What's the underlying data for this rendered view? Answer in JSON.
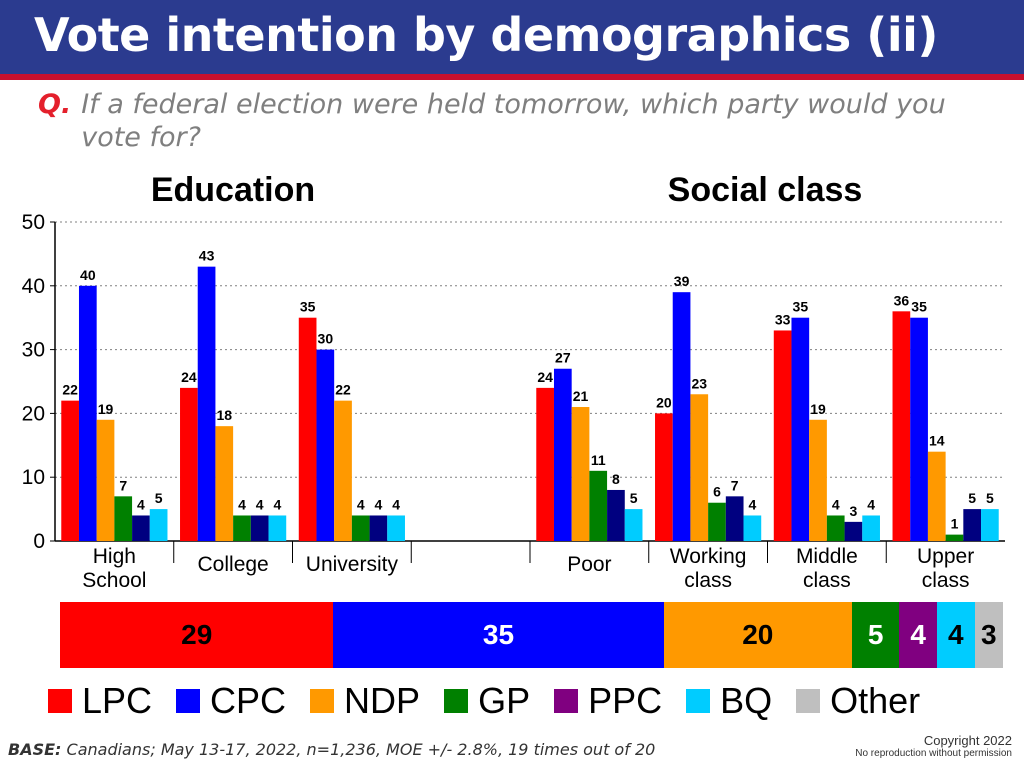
{
  "title": "Vote intention by demographics (ii)",
  "question": {
    "label": "Q.",
    "text": "If a federal election were held tomorrow, which party would you vote for?"
  },
  "colors": {
    "LPC": "#FF0000",
    "CPC": "#0000FF",
    "NDP": "#FF9900",
    "GP": "#008000",
    "PPC": "#800080",
    "BQ": "#00CCFF",
    "Other": "#BFBFBF"
  },
  "chart_data": {
    "type": "bar",
    "panel_titles": [
      "Education",
      "Social class"
    ],
    "ylim": [
      0,
      50
    ],
    "yticks": [
      "0",
      "10",
      "20",
      "30",
      "40",
      "50"
    ],
    "grid": true,
    "categories": [
      "High School",
      "College",
      "University",
      "",
      "Poor",
      "Working class",
      "Middle class",
      "Upper class"
    ],
    "series": [
      {
        "name": "LPC",
        "color": "#FF0000",
        "values": [
          22,
          24,
          35,
          null,
          24,
          20,
          33,
          36
        ]
      },
      {
        "name": "CPC",
        "color": "#0000FF",
        "values": [
          40,
          43,
          30,
          null,
          27,
          39,
          35,
          35
        ]
      },
      {
        "name": "NDP",
        "color": "#FF9900",
        "values": [
          19,
          18,
          22,
          null,
          21,
          23,
          19,
          14
        ]
      },
      {
        "name": "GP",
        "color": "#008000",
        "values": [
          7,
          4,
          4,
          null,
          11,
          6,
          4,
          1
        ]
      },
      {
        "name": "PPC",
        "color": "#000080",
        "values": [
          4,
          4,
          4,
          null,
          8,
          7,
          3,
          5
        ]
      },
      {
        "name": "BQ",
        "color": "#00CCFF",
        "values": [
          5,
          4,
          4,
          null,
          5,
          4,
          4,
          5
        ]
      }
    ]
  },
  "totals": [
    {
      "party": "LPC",
      "value": "29",
      "color": "#FF0000",
      "text_color": "#000000"
    },
    {
      "party": "CPC",
      "value": "35",
      "color": "#0000FF",
      "text_color": "#FFFFFF"
    },
    {
      "party": "NDP",
      "value": "20",
      "color": "#FF9900",
      "text_color": "#000000"
    },
    {
      "party": "GP",
      "value": "5",
      "color": "#008000",
      "text_color": "#FFFFFF"
    },
    {
      "party": "PPC",
      "value": "4",
      "color": "#800080",
      "text_color": "#FFFFFF"
    },
    {
      "party": "BQ",
      "value": "4",
      "color": "#00CCFF",
      "text_color": "#000000"
    },
    {
      "party": "Other",
      "value": "3",
      "color": "#BFBFBF",
      "text_color": "#000000"
    }
  ],
  "legend": [
    {
      "label": "LPC",
      "color": "#FF0000"
    },
    {
      "label": "CPC",
      "color": "#0000FF"
    },
    {
      "label": "NDP",
      "color": "#FF9900"
    },
    {
      "label": "GP",
      "color": "#008000"
    },
    {
      "label": "PPC",
      "color": "#800080"
    },
    {
      "label": "BQ",
      "color": "#00CCFF"
    },
    {
      "label": "Other",
      "color": "#BFBFBF"
    }
  ],
  "base_note": {
    "label": "BASE:",
    "text": "Canadians; May 13-17, 2022, n=1,236,  MOE +/- 2.8%, 19 times out of 20"
  },
  "copyright": {
    "line1": "Copyright 2022",
    "line2": "No reproduction without permission"
  }
}
